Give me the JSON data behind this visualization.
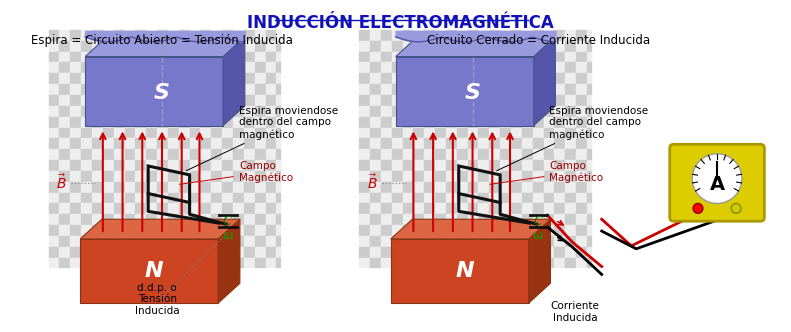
{
  "title": "INDUCCIÓN ELECTROMAGNÉTICA",
  "title_color": "#1111BB",
  "bg_color": "#ffffff",
  "left_subtitle": "Espira = Circuito Abierto = Tensión Inducida",
  "right_subtitle": "Circuito Cerrado = Corriente Inducida",
  "magnet_S_front": "#7777CC",
  "magnet_S_side": "#5555AA",
  "magnet_S_top": "#9999DD",
  "magnet_N_front": "#CC4422",
  "magnet_N_side": "#993311",
  "magnet_N_top": "#DD6644",
  "arrow_red": "#CC0000",
  "coil_color": "#111111",
  "B_color": "#CC0000",
  "omega_color": "#00AA00",
  "anno_fontsize": 7.5,
  "checker_dark": "#cccccc",
  "checker_light": "#eeeeee",
  "subtitle_fontsize": 8.5,
  "title_fontsize": 12
}
